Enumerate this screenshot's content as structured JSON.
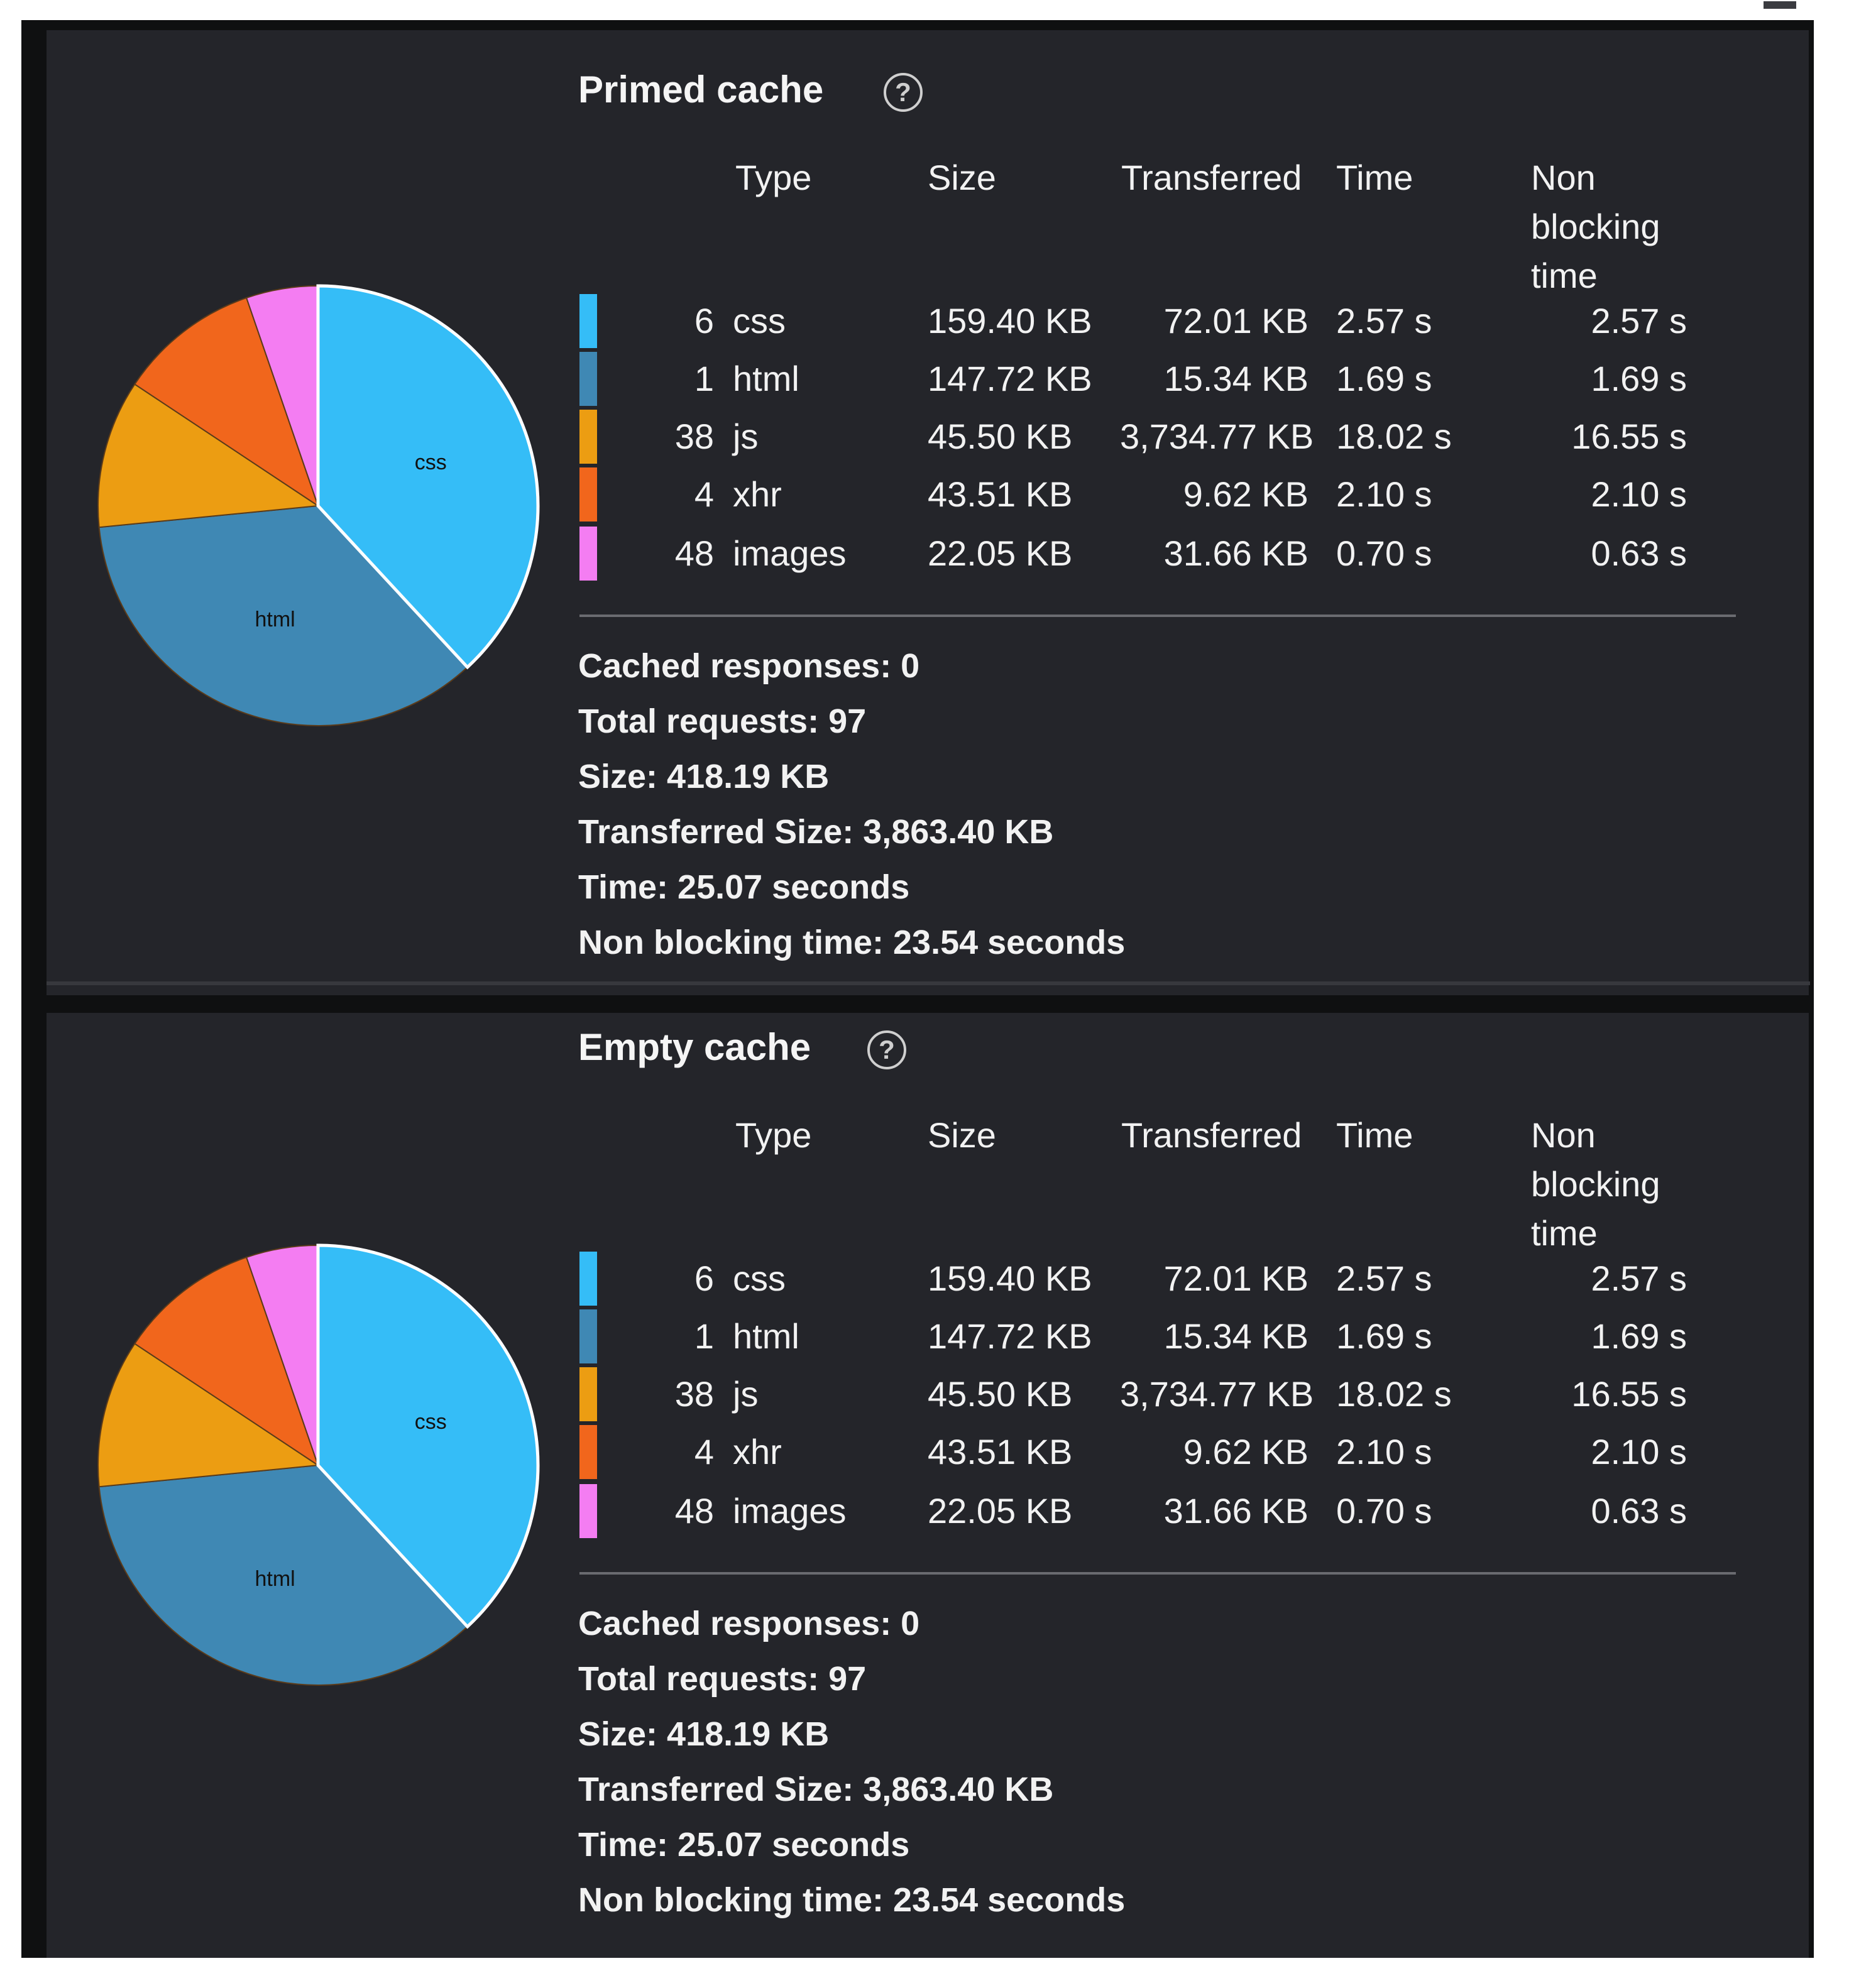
{
  "colors": {
    "css": "#35bdf7",
    "html": "#3f88b4",
    "js": "#ec9d12",
    "xhr": "#f1661c",
    "images": "#f47df2"
  },
  "help_icon_glyph": "?",
  "sections": [
    {
      "title": "Primed cache",
      "headers": {
        "type": "Type",
        "size": "Size",
        "transferred": "Transferred",
        "time": "Time",
        "nonblocking": "Non\nblocking\ntime"
      },
      "rows": [
        {
          "count": "6",
          "type": "css",
          "size": "159.40 KB",
          "transferred": "72.01 KB",
          "time": "2.57 s",
          "nonblocking": "2.57 s"
        },
        {
          "count": "1",
          "type": "html",
          "size": "147.72 KB",
          "transferred": "15.34 KB",
          "time": "1.69 s",
          "nonblocking": "1.69 s"
        },
        {
          "count": "38",
          "type": "js",
          "size": "45.50 KB",
          "transferred": "3,734.77 KB",
          "time": "18.02 s",
          "nonblocking": "16.55 s"
        },
        {
          "count": "4",
          "type": "xhr",
          "size": "43.51 KB",
          "transferred": "9.62 KB",
          "time": "2.10 s",
          "nonblocking": "2.10 s"
        },
        {
          "count": "48",
          "type": "images",
          "size": "22.05 KB",
          "transferred": "31.66 KB",
          "time": "0.70 s",
          "nonblocking": "0.63 s"
        }
      ],
      "summary": [
        "Cached responses: 0",
        "Total requests: 97",
        "Size: 418.19 KB",
        "Transferred Size: 3,863.40 KB",
        "Time: 25.07 seconds",
        "Non blocking time: 23.54 seconds"
      ]
    },
    {
      "title": "Empty cache",
      "headers": {
        "type": "Type",
        "size": "Size",
        "transferred": "Transferred",
        "time": "Time",
        "nonblocking": "Non\nblocking\ntime"
      },
      "rows": [
        {
          "count": "6",
          "type": "css",
          "size": "159.40 KB",
          "transferred": "72.01 KB",
          "time": "2.57 s",
          "nonblocking": "2.57 s"
        },
        {
          "count": "1",
          "type": "html",
          "size": "147.72 KB",
          "transferred": "15.34 KB",
          "time": "1.69 s",
          "nonblocking": "1.69 s"
        },
        {
          "count": "38",
          "type": "js",
          "size": "45.50 KB",
          "transferred": "3,734.77 KB",
          "time": "18.02 s",
          "nonblocking": "16.55 s"
        },
        {
          "count": "4",
          "type": "xhr",
          "size": "43.51 KB",
          "transferred": "9.62 KB",
          "time": "2.10 s",
          "nonblocking": "2.10 s"
        },
        {
          "count": "48",
          "type": "images",
          "size": "22.05 KB",
          "transferred": "31.66 KB",
          "time": "0.70 s",
          "nonblocking": "0.63 s"
        }
      ],
      "summary": [
        "Cached responses: 0",
        "Total requests: 97",
        "Size: 418.19 KB",
        "Transferred Size: 3,863.40 KB",
        "Time: 25.07 seconds",
        "Non blocking time: 23.54 seconds"
      ]
    }
  ],
  "pie_slices": [
    {
      "label": "css",
      "value": 159.4
    },
    {
      "label": "html",
      "value": 147.72
    },
    {
      "label": "js",
      "value": 45.5
    },
    {
      "label": "xhr",
      "value": 43.51
    },
    {
      "label": "images",
      "value": 22.05
    }
  ]
}
